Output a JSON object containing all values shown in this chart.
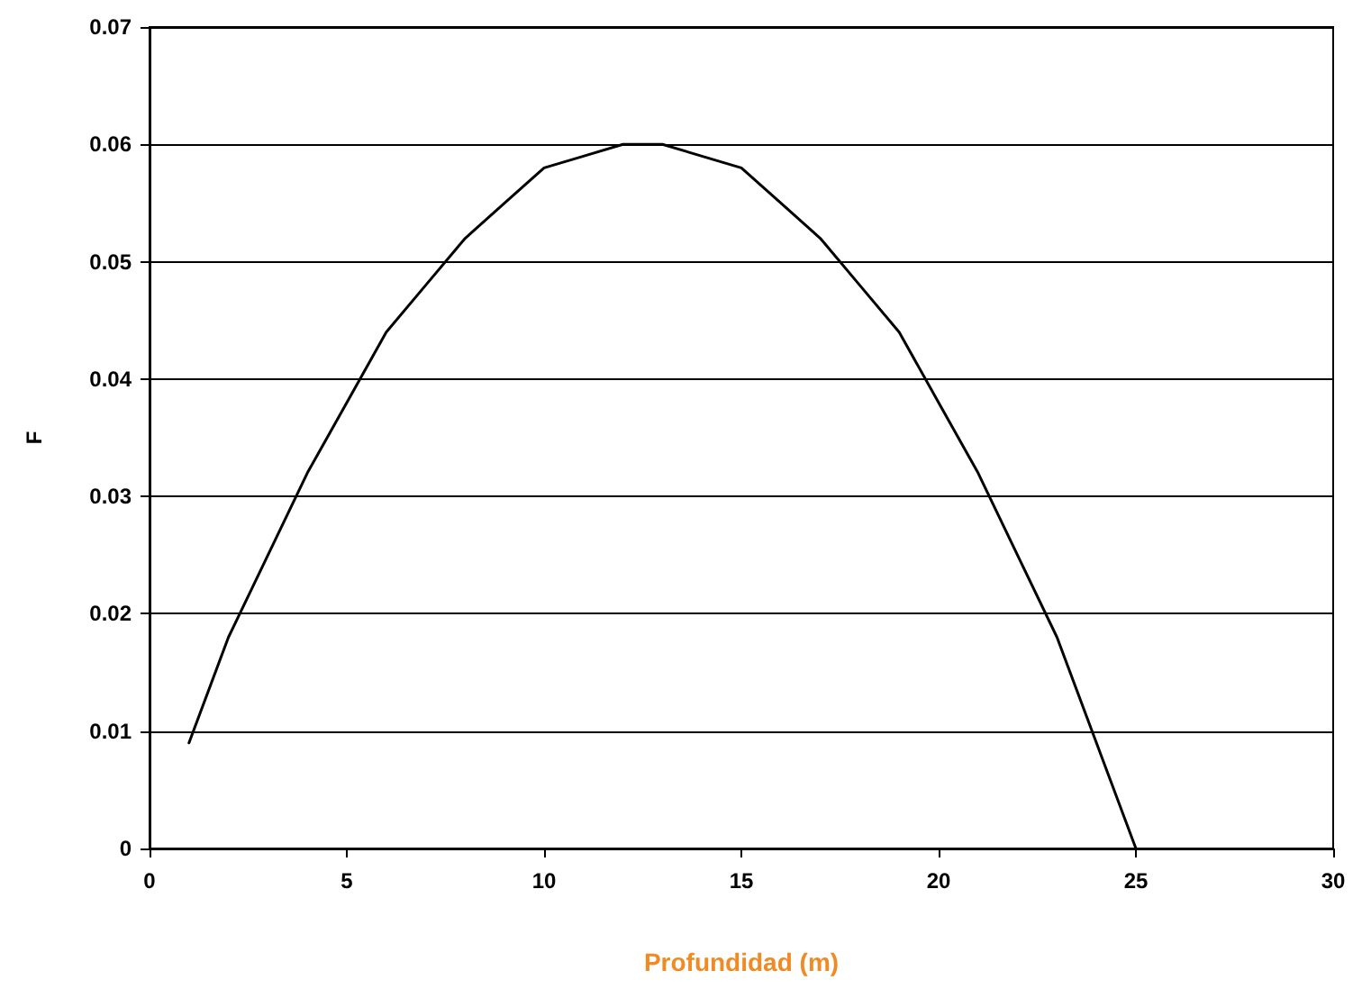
{
  "chart_data": {
    "type": "line",
    "xlabel": "Profundidad (m)",
    "ylabel": "F",
    "x": [
      1,
      2,
      3,
      4,
      5,
      6,
      7,
      8,
      9,
      10,
      11,
      12,
      12.5,
      13,
      14,
      15,
      16,
      17,
      18,
      19,
      20,
      21,
      22,
      23,
      24,
      25
    ],
    "series": [
      {
        "color": "#000000",
        "values": [
          0.009,
          0.018,
          0.025,
          0.032,
          0.038,
          0.044,
          0.048,
          0.052,
          0.055,
          0.058,
          0.059,
          0.06,
          0.06,
          0.06,
          0.059,
          0.058,
          0.055,
          0.052,
          0.048,
          0.044,
          0.038,
          0.032,
          0.025,
          0.018,
          0.009,
          0
        ]
      }
    ],
    "xlim": [
      0,
      30
    ],
    "xticks": [
      0,
      5,
      10,
      15,
      20,
      25,
      30
    ],
    "ylim": [
      0,
      0.07
    ],
    "yticks": [
      0,
      0.01,
      0.02,
      0.03,
      0.04,
      0.05,
      0.06,
      0.07
    ],
    "grid": "y",
    "marker": "none",
    "line_style": "solid"
  }
}
